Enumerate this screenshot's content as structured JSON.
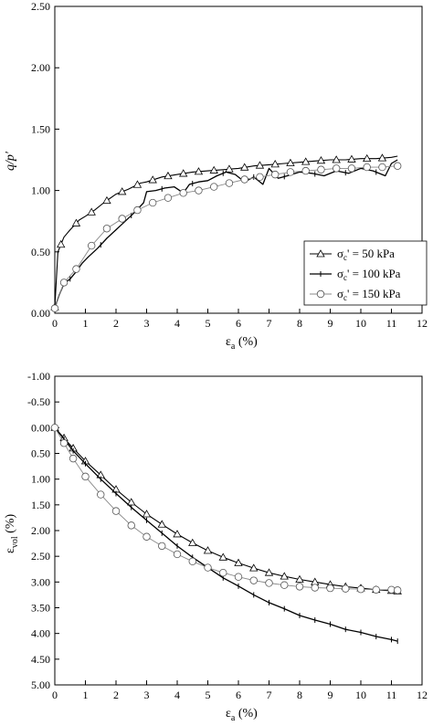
{
  "chart_data": [
    {
      "type": "line",
      "xlabel": "εa (%)",
      "xlabel_main": "ε",
      "xlabel_sub": "a",
      "xlabel_unit": " (%)",
      "ylabel": "q/p'",
      "xlim": [
        0,
        12
      ],
      "ylim": [
        0,
        2.5
      ],
      "xticks": [
        "0",
        "1",
        "2",
        "3",
        "4",
        "5",
        "6",
        "7",
        "8",
        "9",
        "10",
        "11",
        "12"
      ],
      "yticks": [
        "0.00",
        "0.50",
        "1.00",
        "1.50",
        "2.00",
        "2.50"
      ],
      "grid": false,
      "legend_position": "bottom-right",
      "series": [
        {
          "name": "σc' = 50 kPa",
          "label_main": "σ",
          "label_sub": "c",
          "label_rest": "' = 50 kPa",
          "marker": "triangle",
          "x": [
            0,
            0.1,
            0.3,
            0.5,
            0.8,
            1.0,
            1.3,
            1.6,
            2.0,
            2.4,
            2.8,
            3.0,
            3.5,
            4.0,
            4.5,
            5.0,
            5.5,
            6.0,
            6.5,
            7.0,
            7.5,
            8.0,
            8.5,
            9.0,
            9.5,
            10.0,
            10.5,
            11.0,
            11.2
          ],
          "y": [
            0.05,
            0.5,
            0.62,
            0.68,
            0.76,
            0.79,
            0.84,
            0.9,
            0.97,
            1.01,
            1.06,
            1.07,
            1.11,
            1.13,
            1.15,
            1.16,
            1.17,
            1.18,
            1.2,
            1.21,
            1.22,
            1.23,
            1.24,
            1.25,
            1.25,
            1.26,
            1.26,
            1.27,
            1.28
          ],
          "marker_x": [
            0,
            0.2,
            0.7,
            1.2,
            1.7,
            2.2,
            2.7,
            3.2,
            3.7,
            4.2,
            4.7,
            5.2,
            5.7,
            6.2,
            6.7,
            7.2,
            7.7,
            8.2,
            8.7,
            9.2,
            9.7,
            10.2,
            10.7
          ]
        },
        {
          "name": "σc' = 100 kPa",
          "label_main": "σ",
          "label_sub": "c",
          "label_rest": "' = 100 kPa",
          "marker": "plus",
          "x": [
            0,
            0.05,
            0.15,
            0.3,
            0.5,
            0.7,
            0.9,
            1.1,
            1.4,
            1.7,
            2.0,
            2.3,
            2.6,
            2.9,
            3.0,
            3.3,
            3.6,
            3.9,
            4.2,
            4.4,
            4.7,
            5.0,
            5.3,
            5.6,
            5.9,
            6.2,
            6.5,
            6.8,
            7.0,
            7.3,
            7.6,
            8.0,
            8.4,
            8.8,
            9.2,
            9.6,
            10.0,
            10.4,
            10.8,
            11.0,
            11.2
          ],
          "y": [
            0.02,
            0.08,
            0.15,
            0.24,
            0.28,
            0.34,
            0.41,
            0.46,
            0.53,
            0.61,
            0.68,
            0.75,
            0.82,
            0.9,
            0.99,
            1.0,
            1.02,
            1.03,
            0.98,
            1.05,
            1.07,
            1.08,
            1.12,
            1.15,
            1.13,
            1.07,
            1.11,
            1.05,
            1.18,
            1.1,
            1.12,
            1.15,
            1.14,
            1.12,
            1.16,
            1.14,
            1.18,
            1.16,
            1.12,
            1.22,
            1.25
          ],
          "marker_x": [
            0.5,
            1.5,
            2.5,
            3.5,
            4.5,
            5.5,
            6.5,
            7.5,
            8.5,
            9.5,
            10.5
          ]
        },
        {
          "name": "σc' = 150 kPa",
          "label_main": "σ",
          "label_sub": "c",
          "label_rest": "' = 150 kPa",
          "marker": "circle",
          "x": [
            0,
            0.3,
            0.7,
            1.2,
            1.7,
            2.2,
            2.7,
            3.2,
            3.7,
            4.2,
            4.7,
            5.2,
            5.7,
            6.2,
            6.7,
            7.2,
            7.7,
            8.2,
            8.7,
            9.2,
            9.7,
            10.2,
            10.7,
            11.2
          ],
          "y": [
            0.04,
            0.25,
            0.36,
            0.55,
            0.69,
            0.77,
            0.84,
            0.9,
            0.94,
            0.98,
            1.0,
            1.03,
            1.06,
            1.09,
            1.11,
            1.13,
            1.15,
            1.16,
            1.17,
            1.18,
            1.18,
            1.19,
            1.19,
            1.2
          ],
          "marker_x": [
            0,
            0.3,
            0.7,
            1.2,
            1.7,
            2.2,
            2.7,
            3.2,
            3.7,
            4.2,
            4.7,
            5.2,
            5.7,
            6.2,
            6.7,
            7.2,
            7.7,
            8.2,
            8.7,
            9.2,
            9.7,
            10.2,
            10.7,
            11.2
          ]
        }
      ]
    },
    {
      "type": "line",
      "xlabel": "εa (%)",
      "xlabel_main": "ε",
      "xlabel_sub": "a",
      "xlabel_unit": " (%)",
      "ylabel": "εvol (%)",
      "ylabel_main": "ε",
      "ylabel_sub": "vol",
      "ylabel_unit": " (%)",
      "xlim": [
        0,
        12
      ],
      "ylim": [
        -1.0,
        5.0
      ],
      "y_inverted": true,
      "xticks": [
        "0",
        "1",
        "2",
        "3",
        "4",
        "5",
        "6",
        "7",
        "8",
        "9",
        "10",
        "11",
        "12"
      ],
      "yticks": [
        "-1.00",
        "-0.50",
        "0.00",
        "0.50",
        "1.00",
        "1.50",
        "2.00",
        "2.50",
        "3.00",
        "3.50",
        "4.00",
        "4.50",
        "5.00"
      ],
      "grid": false,
      "series": [
        {
          "name": "σc' = 50 kPa",
          "marker": "triangle",
          "x": [
            0,
            0.3,
            0.6,
            1.0,
            1.5,
            2.0,
            2.5,
            3.0,
            3.5,
            4.0,
            4.5,
            5.0,
            5.5,
            6.0,
            6.5,
            7.0,
            7.5,
            8.0,
            8.5,
            9.0,
            9.5,
            10.0,
            10.5,
            11.0,
            11.2
          ],
          "y": [
            0.0,
            0.2,
            0.4,
            0.65,
            0.92,
            1.2,
            1.45,
            1.68,
            1.88,
            2.07,
            2.24,
            2.39,
            2.52,
            2.63,
            2.73,
            2.82,
            2.89,
            2.95,
            3.0,
            3.05,
            3.09,
            3.12,
            3.15,
            3.17,
            3.18
          ]
        },
        {
          "name": "σc' = 100 kPa",
          "marker": "plus",
          "x": [
            0,
            0.3,
            0.6,
            1.0,
            1.5,
            2.0,
            2.5,
            3.0,
            3.5,
            4.0,
            4.5,
            5.0,
            5.5,
            6.0,
            6.5,
            7.0,
            7.5,
            8.0,
            8.5,
            9.0,
            9.5,
            10.0,
            10.5,
            11.0,
            11.2
          ],
          "y": [
            0.0,
            0.22,
            0.45,
            0.7,
            1.0,
            1.28,
            1.55,
            1.8,
            2.05,
            2.3,
            2.52,
            2.72,
            2.92,
            3.08,
            3.25,
            3.4,
            3.52,
            3.65,
            3.74,
            3.82,
            3.92,
            3.98,
            4.06,
            4.12,
            4.15
          ]
        },
        {
          "name": "σc' = 150 kPa",
          "marker": "circle",
          "x": [
            0,
            0.3,
            0.6,
            1.0,
            1.5,
            2.0,
            2.5,
            3.0,
            3.5,
            4.0,
            4.5,
            5.0,
            5.5,
            6.0,
            6.5,
            7.0,
            7.5,
            8.0,
            8.5,
            9.0,
            9.5,
            10.0,
            10.5,
            11.0,
            11.2
          ],
          "y": [
            0.0,
            0.3,
            0.6,
            0.95,
            1.3,
            1.62,
            1.9,
            2.12,
            2.3,
            2.46,
            2.6,
            2.72,
            2.82,
            2.9,
            2.97,
            3.02,
            3.06,
            3.09,
            3.11,
            3.12,
            3.13,
            3.14,
            3.15,
            3.15,
            3.16
          ]
        }
      ]
    }
  ]
}
